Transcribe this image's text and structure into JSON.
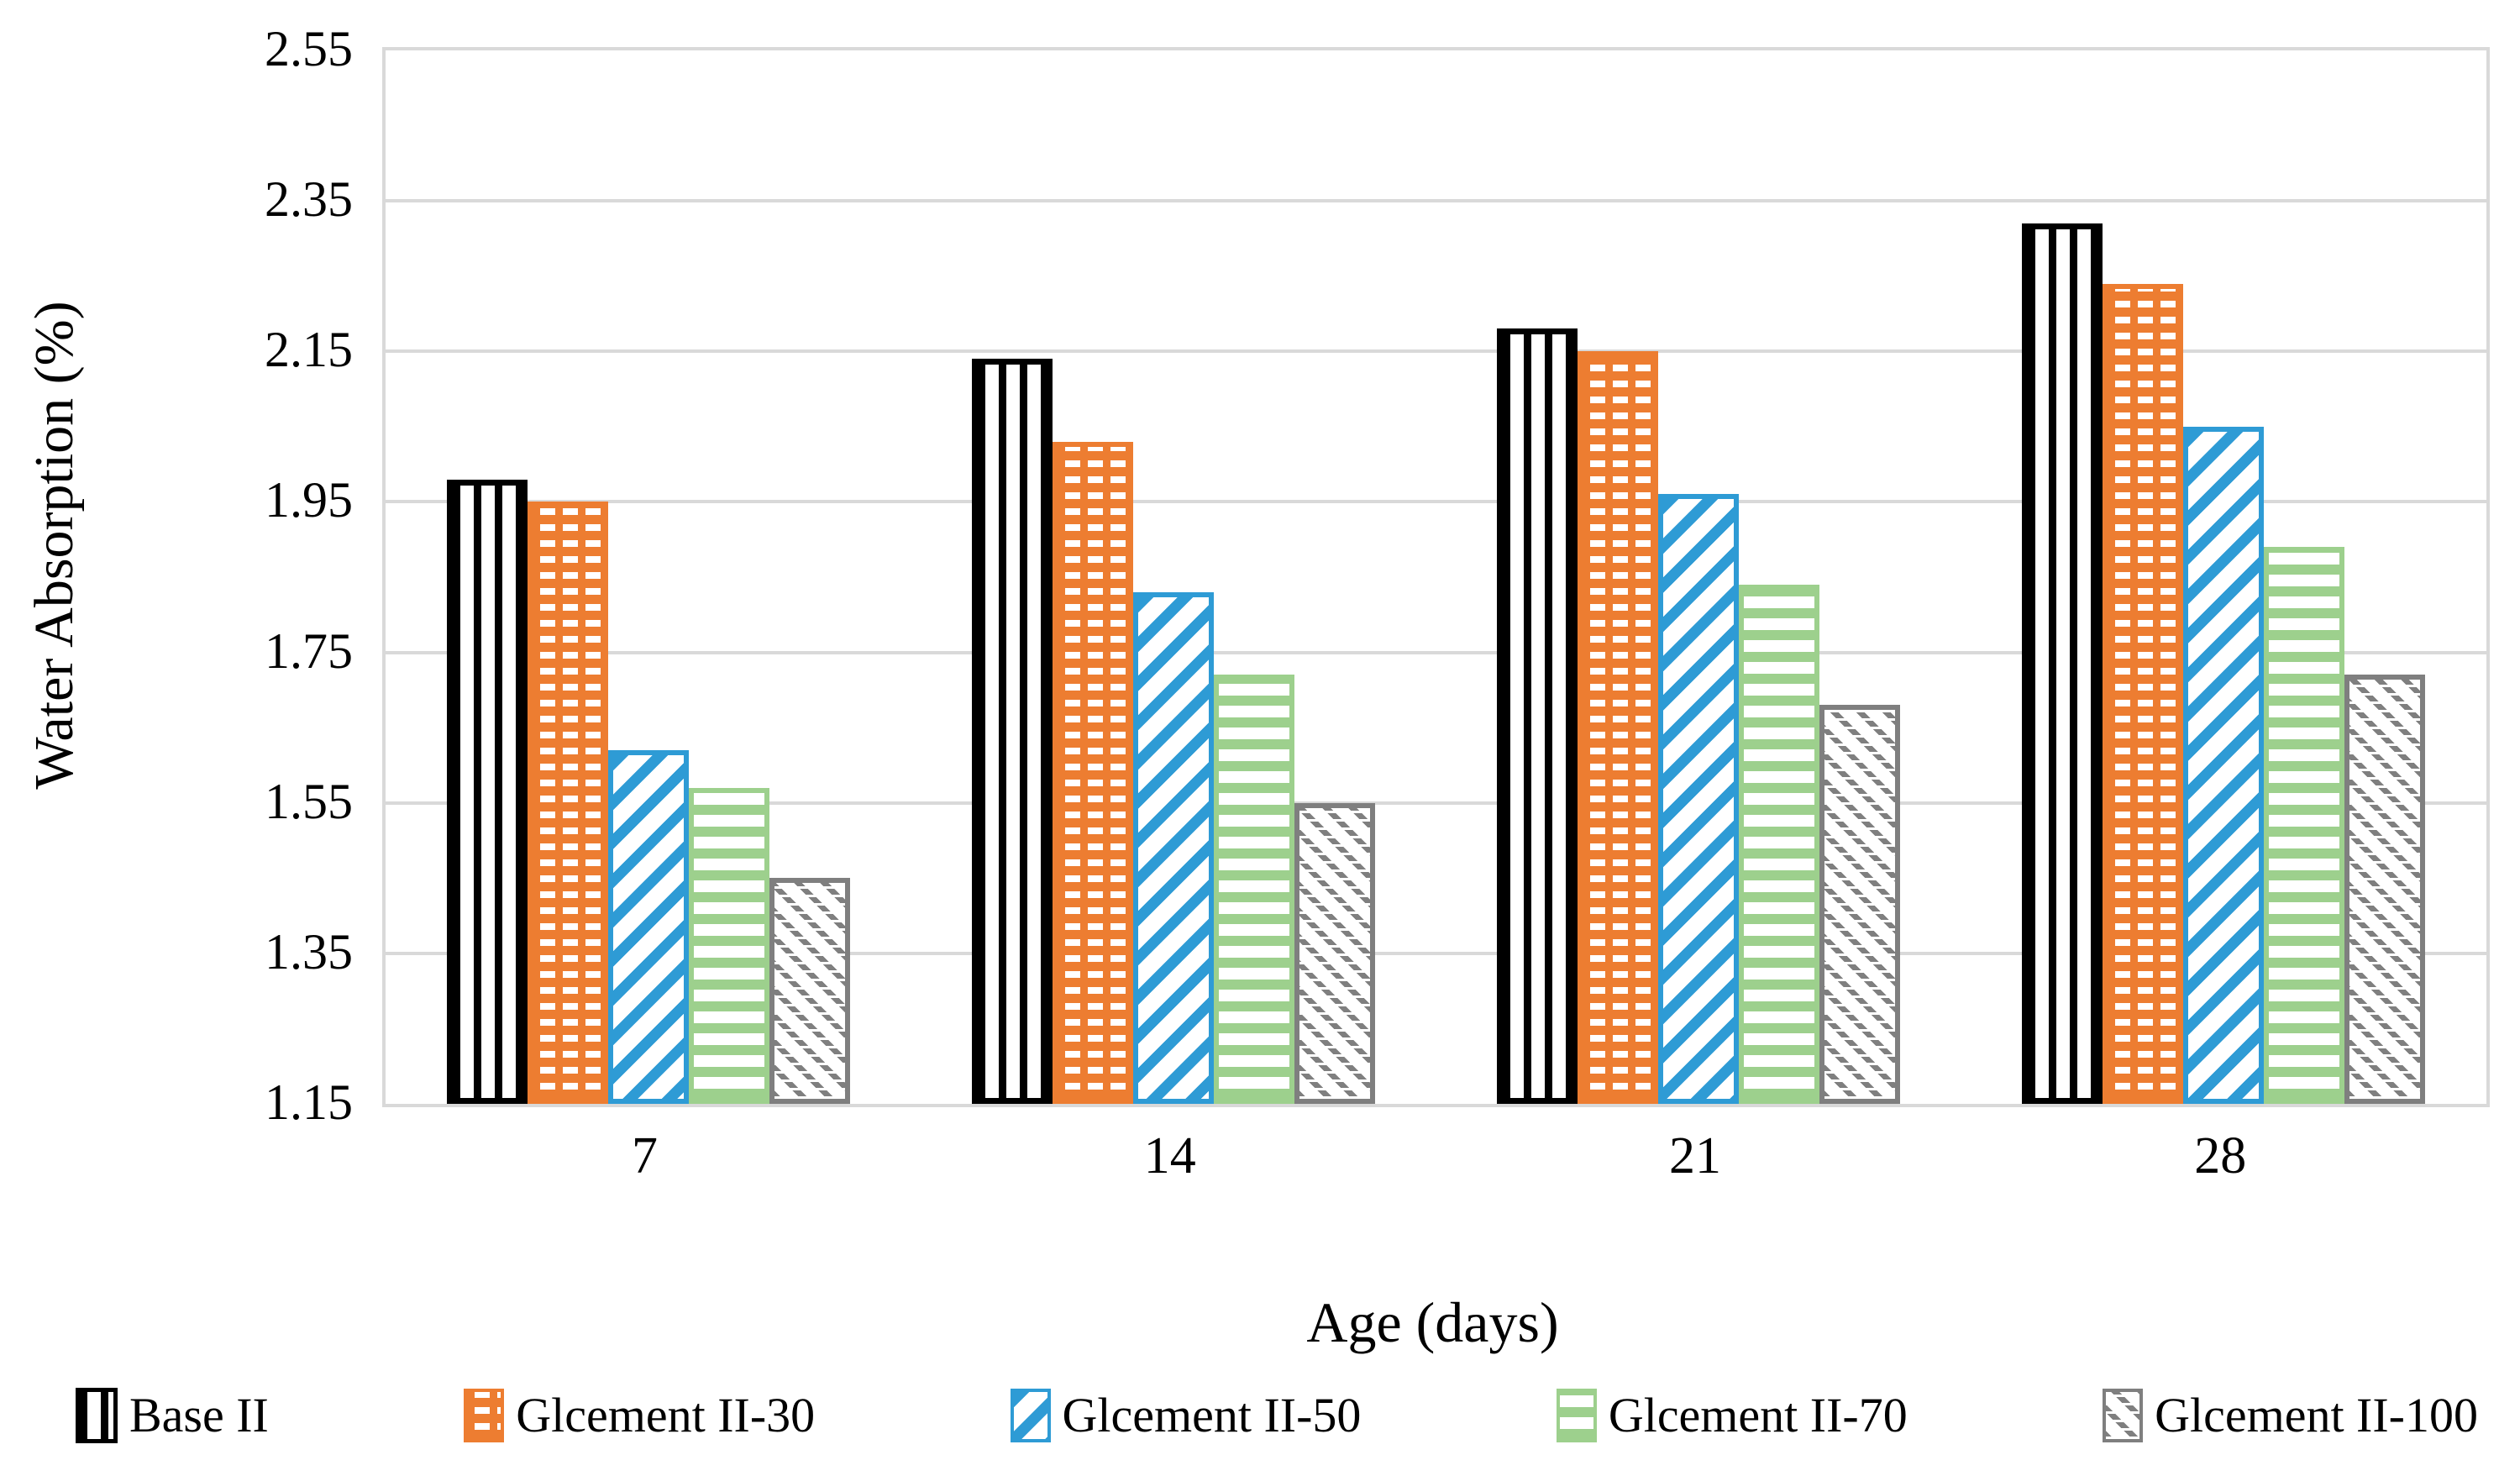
{
  "figure": {
    "background": "#ffffff"
  },
  "y_axis": {
    "title": "Water Absorption (%)",
    "ticks": [
      "2.55",
      "2.35",
      "2.15",
      "1.95",
      "1.75",
      "1.55",
      "1.35",
      "1.15"
    ]
  },
  "x_axis": {
    "title": "Age (days)",
    "categories": [
      "7",
      "14",
      "21",
      "28"
    ]
  },
  "chart_data": {
    "type": "bar",
    "title": "",
    "xlabel": "Age (days)",
    "ylabel": "Water Absorption (%)",
    "ylim": [
      1.15,
      2.55
    ],
    "ytick_step": 0.2,
    "grid": true,
    "gridline_color": "#D9D9D9",
    "legend_position": "bottom",
    "categories": [
      "7",
      "14",
      "21",
      "28"
    ],
    "series": [
      {
        "name": "Base II",
        "pattern": "vertical-stripes",
        "color": "#000000",
        "values": [
          1.98,
          2.14,
          2.18,
          2.32
        ]
      },
      {
        "name": "Glcement II-30",
        "pattern": "dashed-brick",
        "color": "#ED7D31",
        "values": [
          1.95,
          2.03,
          2.15,
          2.24
        ]
      },
      {
        "name": "Glcement II-50",
        "pattern": "diagonal-up-stripes",
        "color": "#2E9BD5",
        "values": [
          1.62,
          1.83,
          1.96,
          2.05
        ]
      },
      {
        "name": "Glcement II-70",
        "pattern": "horizontal-stripes",
        "color": "#9DD08D",
        "values": [
          1.57,
          1.72,
          1.84,
          1.89
        ]
      },
      {
        "name": "Glcement II-100",
        "pattern": "diagonal-down-dotted",
        "color": "#7F7F7F",
        "values": [
          1.45,
          1.55,
          1.68,
          1.72
        ]
      }
    ]
  }
}
